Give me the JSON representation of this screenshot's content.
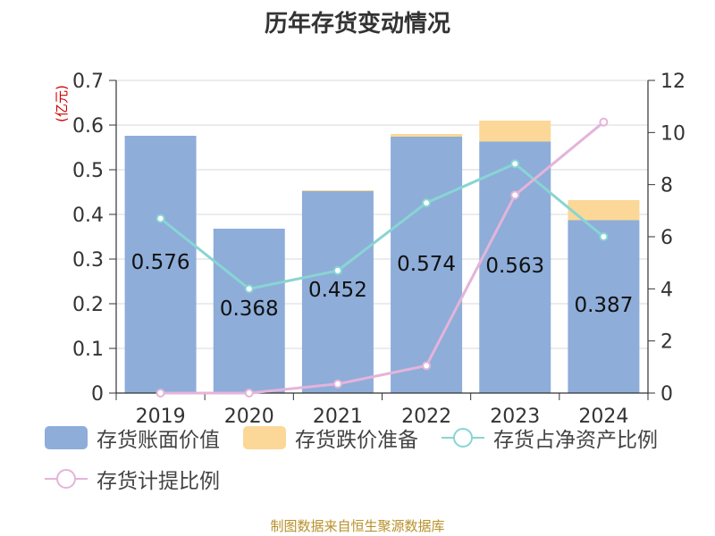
{
  "title": "历年存货变动情况",
  "source": "制图数据来自恒生聚源数据库",
  "chart_data": {
    "type": "bar",
    "categories": [
      "2019",
      "2020",
      "2021",
      "2022",
      "2023",
      "2024"
    ],
    "y_left": {
      "unit": "(亿元)",
      "ylim": [
        0,
        0.7
      ],
      "ticks": [
        "0",
        "0.1",
        "0.2",
        "0.3",
        "0.4",
        "0.5",
        "0.6",
        "0.7"
      ]
    },
    "y_right": {
      "ylim": [
        0,
        12
      ],
      "ticks": [
        "0",
        "2",
        "4",
        "6",
        "8",
        "10",
        "12"
      ]
    },
    "series": [
      {
        "name": "存货账面价值",
        "kind": "bar",
        "axis": "left",
        "color": "#8eadd9",
        "values": [
          0.576,
          0.368,
          0.452,
          0.574,
          0.563,
          0.387
        ],
        "labels": [
          "0.576",
          "0.368",
          "0.452",
          "0.574",
          "0.563",
          "0.387"
        ]
      },
      {
        "name": "存货跌价准备",
        "kind": "bar-stack",
        "axis": "left",
        "color": "#fbd898",
        "values": [
          0.0,
          0.0,
          0.002,
          0.006,
          0.047,
          0.045
        ]
      },
      {
        "name": "存货占净资产比例",
        "kind": "line",
        "axis": "right",
        "color": "#88d5d3",
        "values": [
          6.7,
          4.0,
          4.7,
          7.3,
          8.8,
          6.0
        ]
      },
      {
        "name": "存货计提比例",
        "kind": "line",
        "axis": "right",
        "color": "#e4b4da",
        "values": [
          0.0,
          0.0,
          0.35,
          1.05,
          7.6,
          10.4
        ]
      }
    ],
    "grid": true,
    "legend": "bottom"
  }
}
